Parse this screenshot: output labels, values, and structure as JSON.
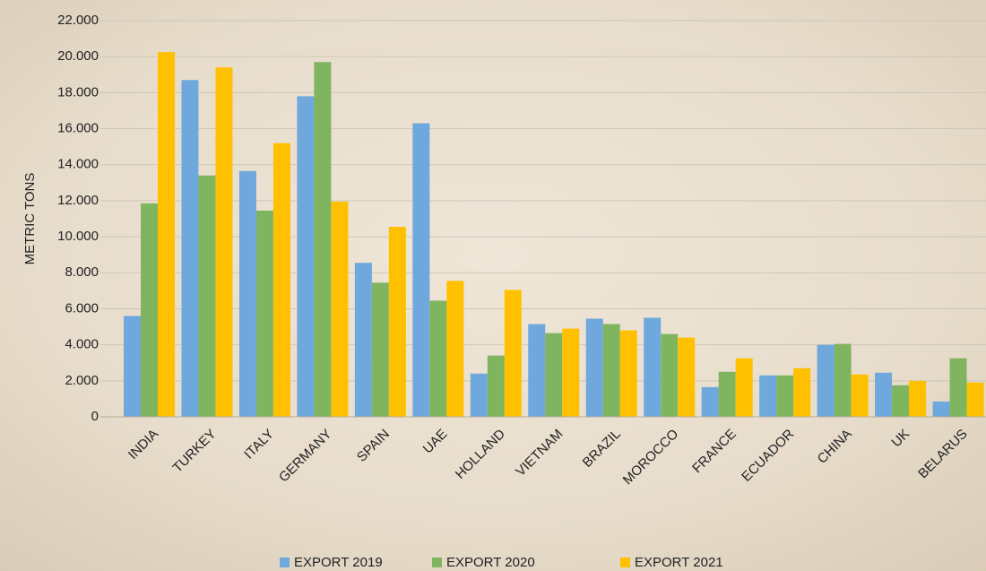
{
  "chart_data": {
    "type": "bar",
    "y_label": "METRIC TONS",
    "categories": [
      "INDIA",
      "TURKEY",
      "ITALY",
      "GERMANY",
      "SPAIN",
      "UAE",
      "HOLLAND",
      "VIETNAM",
      "BRAZIL",
      "MOROCCO",
      "FRANCE",
      "ECUADOR",
      "CHINA",
      "UK",
      "BELARUS"
    ],
    "series": [
      {
        "name": "EXPORT 2019",
        "color": "#6fa8dc",
        "values": [
          5600,
          18700,
          13650,
          17800,
          8550,
          16300,
          2400,
          5150,
          5450,
          5500,
          1650,
          2300,
          4000,
          2450,
          850
        ]
      },
      {
        "name": "EXPORT 2020",
        "color": "#80b560",
        "values": [
          11850,
          13400,
          11450,
          19700,
          7450,
          6450,
          3400,
          4650,
          5150,
          4600,
          2500,
          2300,
          4050,
          1750,
          3250
        ]
      },
      {
        "name": "EXPORT 2021",
        "color": "#ffc000",
        "values": [
          20250,
          19400,
          15200,
          11950,
          10550,
          7550,
          7050,
          4900,
          4800,
          4400,
          3250,
          2700,
          2350,
          2000,
          1900
        ]
      }
    ],
    "ylim": [
      0,
      22000
    ],
    "yticks": [
      0,
      {
        "value": 2000,
        "label": "2.000"
      },
      {
        "value": 4000,
        "label": "4.000"
      },
      {
        "value": 6000,
        "label": "6.000"
      },
      {
        "value": 8000,
        "label": "8.000"
      },
      {
        "value": 10000,
        "label": "10.000"
      },
      {
        "value": 12000,
        "label": "12.000"
      },
      {
        "value": 14000,
        "label": "14.000"
      },
      {
        "value": 16000,
        "label": "16.000"
      },
      {
        "value": 18000,
        "label": "18.000"
      },
      {
        "value": 20000,
        "label": "20.000"
      },
      {
        "value": 22000,
        "label": "22.000"
      }
    ],
    "grid": true,
    "legend": "bottom"
  }
}
